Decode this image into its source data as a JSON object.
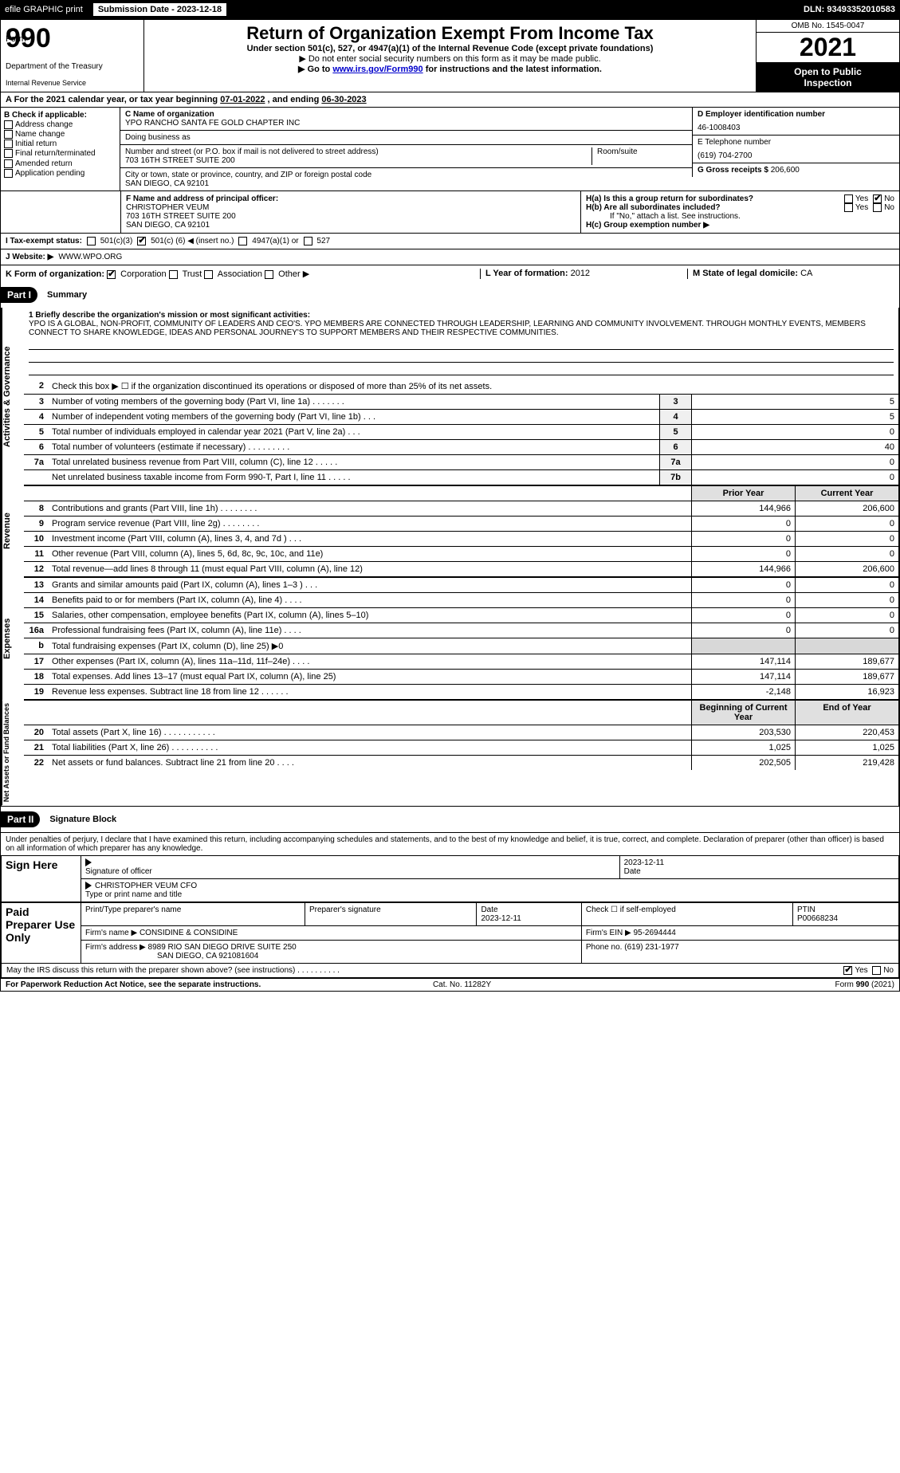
{
  "header": {
    "efile": "efile GRAPHIC print",
    "submission_label": "Submission Date - 2023-12-18",
    "dln": "DLN: 93493352010583"
  },
  "top": {
    "form_prefix": "Form",
    "form_number": "990",
    "title": "Return of Organization Exempt From Income Tax",
    "subtitle": "Under section 501(c), 527, or 4947(a)(1) of the Internal Revenue Code (except private foundations)",
    "instr1": "▶ Do not enter social security numbers on this form as it may be made public.",
    "instr2_pre": "▶ Go to ",
    "instr2_link": "www.irs.gov/Form990",
    "instr2_post": " for instructions and the latest information.",
    "dept1": "Department of the Treasury",
    "dept2": "Internal Revenue Service",
    "omb": "OMB No. 1545-0047",
    "year": "2021",
    "inspection1": "Open to Public",
    "inspection2": "Inspection"
  },
  "lineA": {
    "pre": "A For the 2021 calendar year, or tax year beginning ",
    "begin": "07-01-2022",
    "mid": " , and ending ",
    "end": "06-30-2023"
  },
  "B": {
    "label": "B Check if applicable:",
    "opts": [
      "Address change",
      "Name change",
      "Initial return",
      "Final return/terminated",
      "Amended return",
      "Application pending"
    ]
  },
  "C": {
    "name_label": "C Name of organization",
    "name": "YPO RANCHO SANTA FE GOLD CHAPTER INC",
    "dba_label": "Doing business as",
    "dba": "",
    "street_label": "Number and street (or P.O. box if mail is not delivered to street address)",
    "room_label": "Room/suite",
    "street": "703 16TH STREET SUITE 200",
    "city_label": "City or town, state or province, country, and ZIP or foreign postal code",
    "city": "SAN DIEGO, CA  92101"
  },
  "D": {
    "label": "D Employer identification number",
    "value": "46-1008403"
  },
  "E": {
    "label": "E Telephone number",
    "value": "(619) 704-2700"
  },
  "G": {
    "label": "G Gross receipts $",
    "value": "206,600"
  },
  "F": {
    "label": "F Name and address of principal officer:",
    "name": "CHRISTOPHER VEUM",
    "street": "703 16TH STREET SUITE 200",
    "city": "SAN DIEGO, CA  92101"
  },
  "H": {
    "a": "H(a) Is this a group return for subordinates?",
    "b": "H(b) Are all subordinates included?",
    "b_note": "If \"No,\" attach a list. See instructions.",
    "c": "H(c) Group exemption number ▶",
    "yes": "Yes",
    "no": "No",
    "a_checked": "no"
  },
  "I": {
    "label": "I Tax-exempt status:",
    "opt1": "501(c)(3)",
    "opt2_pre": "501(c) (",
    "opt2_val": "6",
    "opt2_post": ") ◀ (insert no.)",
    "opt3": "4947(a)(1) or",
    "opt4": "527"
  },
  "J": {
    "label": "J Website: ▶",
    "value": "WWW.WPO.ORG"
  },
  "K": {
    "label": "K Form of organization:",
    "opts": [
      "Corporation",
      "Trust",
      "Association",
      "Other ▶"
    ],
    "checked": 0
  },
  "L": {
    "label": "L Year of formation:",
    "value": "2012"
  },
  "M": {
    "label": "M State of legal domicile:",
    "value": "CA"
  },
  "parts": {
    "p1": "Part I",
    "p1t": "Summary",
    "p2": "Part II",
    "p2t": "Signature Block"
  },
  "summary": {
    "mission_label": "1  Briefly describe the organization's mission or most significant activities:",
    "mission": "YPO IS A GLOBAL, NON-PROFIT, COMMUNITY OF LEADERS AND CEO'S. YPO MEMBERS ARE CONNECTED THROUGH LEADERSHIP, LEARNING AND COMMUNITY INVOLVEMENT. THROUGH MONTHLY EVENTS, MEMBERS CONNECT TO SHARE KNOWLEDGE, IDEAS AND PERSONAL JOURNEY'S TO SUPPORT MEMBERS AND THEIR RESPECTIVE COMMUNITIES.",
    "l2": "Check this box ▶ ☐ if the organization discontinued its operations or disposed of more than 25% of its net assets.",
    "gov": [
      {
        "n": "3",
        "d": "Number of voting members of the governing body (Part VI, line 1a)  .   .   .   .   .   .   .",
        "b": "3",
        "v": "5"
      },
      {
        "n": "4",
        "d": "Number of independent voting members of the governing body (Part VI, line 1b)  .   .   .",
        "b": "4",
        "v": "5"
      },
      {
        "n": "5",
        "d": "Total number of individuals employed in calendar year 2021 (Part V, line 2a)  .   .   .",
        "b": "5",
        "v": "0"
      },
      {
        "n": "6",
        "d": "Total number of volunteers (estimate if necessary)   .   .   .   .   .   .   .   .   .",
        "b": "6",
        "v": "40"
      },
      {
        "n": "7a",
        "d": "Total unrelated business revenue from Part VIII, column (C), line 12  .   .   .   .   .",
        "b": "7a",
        "v": "0"
      },
      {
        "n": "",
        "d": "Net unrelated business taxable income from Form 990-T, Part I, line 11  .   .   .   .   .",
        "b": "7b",
        "v": "0"
      }
    ],
    "hdr_prior": "Prior Year",
    "hdr_curr": "Current Year",
    "rev": [
      {
        "n": "8",
        "d": "Contributions and grants (Part VIII, line 1h)  .   .   .   .   .   .   .   .",
        "p": "144,966",
        "c": "206,600"
      },
      {
        "n": "9",
        "d": "Program service revenue (Part VIII, line 2g)  .   .   .   .   .   .   .   .",
        "p": "0",
        "c": "0"
      },
      {
        "n": "10",
        "d": "Investment income (Part VIII, column (A), lines 3, 4, and 7d )  .   .   .",
        "p": "0",
        "c": "0"
      },
      {
        "n": "11",
        "d": "Other revenue (Part VIII, column (A), lines 5, 6d, 8c, 9c, 10c, and 11e)",
        "p": "0",
        "c": "0"
      },
      {
        "n": "12",
        "d": "Total revenue—add lines 8 through 11 (must equal Part VIII, column (A), line 12)",
        "p": "144,966",
        "c": "206,600"
      }
    ],
    "exp": [
      {
        "n": "13",
        "d": "Grants and similar amounts paid (Part IX, column (A), lines 1–3 )  .   .   .",
        "p": "0",
        "c": "0"
      },
      {
        "n": "14",
        "d": "Benefits paid to or for members (Part IX, column (A), line 4)  .   .   .   .",
        "p": "0",
        "c": "0"
      },
      {
        "n": "15",
        "d": "Salaries, other compensation, employee benefits (Part IX, column (A), lines 5–10)",
        "p": "0",
        "c": "0"
      },
      {
        "n": "16a",
        "d": "Professional fundraising fees (Part IX, column (A), line 11e)  .   .   .   .",
        "p": "0",
        "c": "0"
      },
      {
        "n": "b",
        "d": "Total fundraising expenses (Part IX, column (D), line 25) ▶0",
        "p": "",
        "c": "",
        "shaded": true
      },
      {
        "n": "17",
        "d": "Other expenses (Part IX, column (A), lines 11a–11d, 11f–24e)  .   .   .   .",
        "p": "147,114",
        "c": "189,677"
      },
      {
        "n": "18",
        "d": "Total expenses. Add lines 13–17 (must equal Part IX, column (A), line 25)",
        "p": "147,114",
        "c": "189,677"
      },
      {
        "n": "19",
        "d": "Revenue less expenses. Subtract line 18 from line 12  .   .   .   .   .   .",
        "p": "-2,148",
        "c": "16,923"
      }
    ],
    "hdr_begin": "Beginning of Current Year",
    "hdr_end": "End of Year",
    "net": [
      {
        "n": "20",
        "d": "Total assets (Part X, line 16)  .   .   .   .   .   .   .   .   .   .   .",
        "p": "203,530",
        "c": "220,453"
      },
      {
        "n": "21",
        "d": "Total liabilities (Part X, line 26)  .   .   .   .   .   .   .   .   .   .",
        "p": "1,025",
        "c": "1,025"
      },
      {
        "n": "22",
        "d": "Net assets or fund balances. Subtract line 21 from line 20  .   .   .   .",
        "p": "202,505",
        "c": "219,428"
      }
    ],
    "vlabels": {
      "gov": "Activities & Governance",
      "rev": "Revenue",
      "exp": "Expenses",
      "net": "Net Assets or Fund Balances"
    }
  },
  "sig": {
    "decl": "Under penalties of perjury, I declare that I have examined this return, including accompanying schedules and statements, and to the best of my knowledge and belief, it is true, correct, and complete. Declaration of preparer (other than officer) is based on all information of which preparer has any knowledge.",
    "sign_here": "Sign Here",
    "sig_officer": "Signature of officer",
    "date": "Date",
    "sig_date": "2023-12-11",
    "name": "CHRISTOPHER VEUM CFO",
    "name_label": "Type or print name and title",
    "paid": "Paid Preparer Use Only",
    "prep_name_label": "Print/Type preparer's name",
    "prep_name": "",
    "prep_sig_label": "Preparer's signature",
    "prep_date_label": "Date",
    "prep_date": "2023-12-11",
    "self_emp": "Check ☐ if self-employed",
    "ptin_label": "PTIN",
    "ptin": "P00668234",
    "firm_name_label": "Firm's name    ▶",
    "firm_name": "CONSIDINE & CONSIDINE",
    "firm_ein_label": "Firm's EIN ▶",
    "firm_ein": "95-2694444",
    "firm_addr_label": "Firm's address ▶",
    "firm_addr1": "8989 RIO SAN DIEGO DRIVE SUITE 250",
    "firm_addr2": "SAN DIEGO, CA  921081604",
    "phone_label": "Phone no.",
    "phone": "(619) 231-1977",
    "may_irs": "May the IRS discuss this return with the preparer shown above? (see instructions)   .   .   .   .   .   .   .   .   .   .",
    "may_yes": "Yes",
    "may_no": "No"
  },
  "footer": {
    "l": "For Paperwork Reduction Act Notice, see the separate instructions.",
    "m": "Cat. No. 11282Y",
    "r": "Form 990 (2021)"
  }
}
